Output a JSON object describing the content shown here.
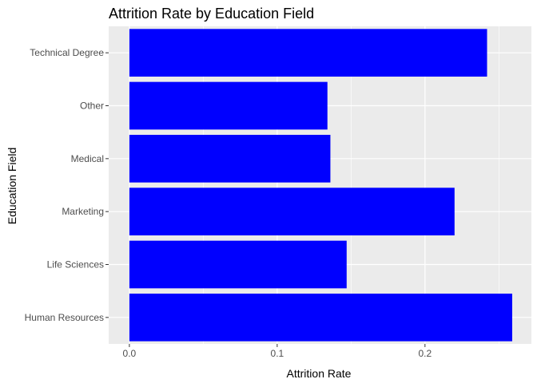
{
  "chart_data": {
    "type": "bar",
    "orientation": "horizontal",
    "title": "Attrition Rate by Education Field",
    "xlabel": "Attrition Rate",
    "ylabel": "Education Field",
    "categories": [
      "Human Resources",
      "Life Sciences",
      "Marketing",
      "Medical",
      "Other",
      "Technical Degree"
    ],
    "values": [
      0.259,
      0.147,
      0.22,
      0.136,
      0.134,
      0.242
    ],
    "xlim": [
      -0.014,
      0.272
    ],
    "xticks": [
      {
        "value": 0.0,
        "label": "0.0"
      },
      {
        "value": 0.1,
        "label": "0.1"
      },
      {
        "value": 0.2,
        "label": "0.2"
      }
    ],
    "grid": true,
    "legend": "none",
    "colors": {
      "bar": "#0000ff",
      "panel": "#ebebeb",
      "grid": "#ffffff",
      "tick": "#333333"
    }
  }
}
